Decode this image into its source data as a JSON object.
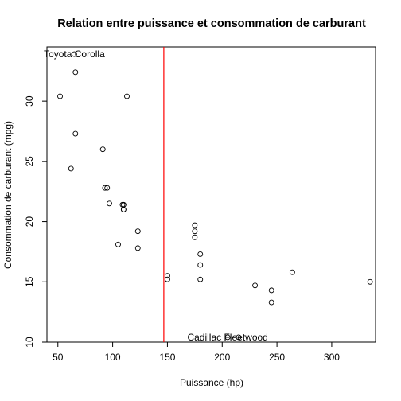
{
  "chart_data": {
    "type": "scatter",
    "title": "Relation entre puissance et consommation de carburant",
    "xlabel": "Puissance (hp)",
    "ylabel": "Consommation de carburant (mpg)",
    "xlim": [
      40,
      340
    ],
    "ylim": [
      10,
      34.5
    ],
    "xticks": [
      50,
      100,
      150,
      200,
      250,
      300
    ],
    "yticks": [
      10,
      15,
      20,
      25,
      30
    ],
    "grid": false,
    "legend": "none",
    "point_color": "#000000",
    "reference_line": {
      "orientation": "vertical",
      "x": 146.7,
      "color": "#ff0000"
    },
    "points": [
      {
        "x": 110,
        "y": 21.0
      },
      {
        "x": 110,
        "y": 21.0
      },
      {
        "x": 93,
        "y": 22.8
      },
      {
        "x": 110,
        "y": 21.4
      },
      {
        "x": 175,
        "y": 18.7
      },
      {
        "x": 105,
        "y": 18.1
      },
      {
        "x": 245,
        "y": 14.3
      },
      {
        "x": 62,
        "y": 24.4
      },
      {
        "x": 95,
        "y": 22.8
      },
      {
        "x": 123,
        "y": 19.2
      },
      {
        "x": 123,
        "y": 17.8
      },
      {
        "x": 180,
        "y": 16.4
      },
      {
        "x": 180,
        "y": 17.3
      },
      {
        "x": 180,
        "y": 15.2
      },
      {
        "x": 205,
        "y": 10.4
      },
      {
        "x": 215,
        "y": 10.4
      },
      {
        "x": 230,
        "y": 14.7
      },
      {
        "x": 66,
        "y": 32.4
      },
      {
        "x": 52,
        "y": 30.4
      },
      {
        "x": 65,
        "y": 33.9
      },
      {
        "x": 97,
        "y": 21.5
      },
      {
        "x": 150,
        "y": 15.5
      },
      {
        "x": 150,
        "y": 15.2
      },
      {
        "x": 245,
        "y": 13.3
      },
      {
        "x": 175,
        "y": 19.2
      },
      {
        "x": 66,
        "y": 27.3
      },
      {
        "x": 91,
        "y": 26.0
      },
      {
        "x": 113,
        "y": 30.4
      },
      {
        "x": 264,
        "y": 15.8
      },
      {
        "x": 175,
        "y": 19.7
      },
      {
        "x": 335,
        "y": 15.0
      },
      {
        "x": 109,
        "y": 21.4
      }
    ],
    "annotations": [
      {
        "text": "Toyota Corolla",
        "x": 65,
        "y": 33.9
      },
      {
        "text": "Cadillac Fleetwood",
        "x": 205,
        "y": 10.4
      }
    ]
  }
}
